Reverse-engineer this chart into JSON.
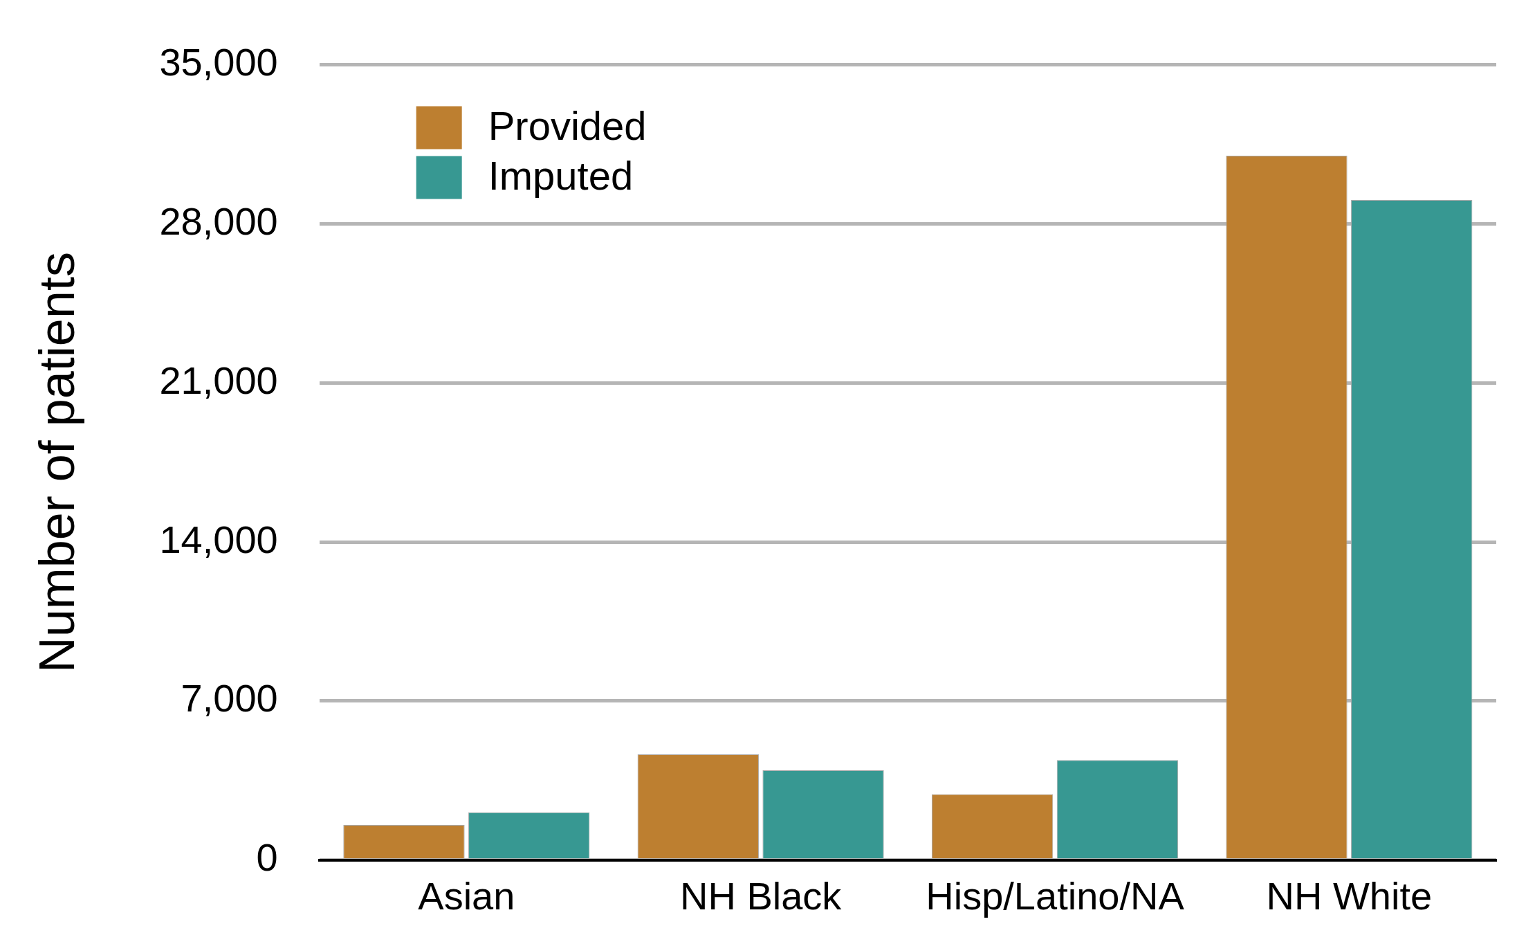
{
  "chart_data": {
    "type": "bar",
    "ylabel": "Number of patients",
    "categories": [
      "Asian",
      "NH Black",
      "Hisp/Latino/NA",
      "NH White"
    ],
    "series": [
      {
        "name": "Provided",
        "color": "#bd7f30",
        "values": [
          1550,
          4650,
          2900,
          31000
        ]
      },
      {
        "name": "Imputed",
        "color": "#379892",
        "values": [
          2100,
          3950,
          4400,
          29050
        ]
      }
    ],
    "ylim": [
      0,
      35000
    ],
    "yticks": [
      0,
      {
        "value": 7000,
        "label": "7,000"
      },
      {
        "value": 14000,
        "label": "14,000"
      },
      {
        "value": 21000,
        "label": "21,000"
      },
      {
        "value": 28000,
        "label": "28,000"
      },
      {
        "value": 35000,
        "label": "35,000"
      }
    ],
    "grid": "y",
    "legend": "top left"
  }
}
